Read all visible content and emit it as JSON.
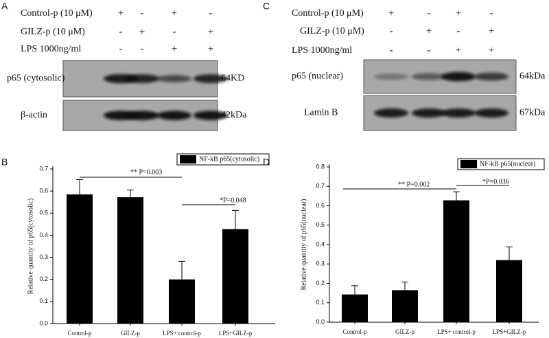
{
  "panels": [
    {
      "label": "A",
      "treatments": [
        {
          "name": "Control-p (10 μM)",
          "signs": [
            "+",
            "-",
            "+",
            "-"
          ]
        },
        {
          "name": "GILZ-p (10 μM)",
          "signs": [
            "-",
            "+",
            "-",
            "+"
          ]
        },
        {
          "name": "LPS 1000ng/ml",
          "signs": [
            "-",
            "-",
            "+",
            "+"
          ]
        }
      ],
      "blots": [
        {
          "protein": "p65 (cytosolic)",
          "size": "64KD"
        },
        {
          "protein": "β-actin",
          "size": "42kDa"
        }
      ]
    },
    {
      "label": "C",
      "treatments": [
        {
          "name": "Control-p (10 μM)",
          "signs": [
            "+",
            "-",
            "+",
            "-"
          ]
        },
        {
          "name": "GILZ-p (10 μM)",
          "signs": [
            "-",
            "+",
            "-",
            "+"
          ]
        },
        {
          "name": "LPS 1000ng/ml",
          "signs": [
            "-",
            "-",
            "+",
            "+"
          ]
        }
      ],
      "blots": [
        {
          "protein": "p65 (nuclear)",
          "size": "64kDa"
        },
        {
          "protein": "Lamin B",
          "size": "67kDa"
        }
      ]
    }
  ],
  "chart_data": [
    {
      "type": "bar",
      "panel_label": "B",
      "ylabel": "Relative quantity of p65(cytosolic)",
      "categories": [
        "Control-p",
        "GILZ-p",
        "LPS+ control-p",
        "LPS+GILZ-p"
      ],
      "series": [
        {
          "name": "NF-kB p65(cytosolic)",
          "color": "#000000",
          "values": [
            0.585,
            0.572,
            0.2,
            0.428
          ],
          "errors": [
            0.067,
            0.033,
            0.082,
            0.084
          ]
        }
      ],
      "ylim": [
        0,
        0.7
      ],
      "yticks": [
        {
          "value": 0,
          "label": "0.0"
        },
        0.1,
        0.2,
        0.3,
        0.4,
        0.5,
        0.6,
        0.7
      ],
      "annotations": [
        "** P=0.003",
        "*P=0.048"
      ]
    },
    {
      "type": "bar",
      "panel_label": "D",
      "ylabel": "Relative quantity of p65(nuclear)",
      "categories": [
        "Control-p",
        "GILZ-p",
        "LPS+ control-p",
        "LPS+GILZ-p"
      ],
      "series": [
        {
          "name": "NF-kB p65(nuclear)",
          "color": "#000000",
          "values": [
            0.143,
            0.165,
            0.628,
            0.32
          ],
          "errors": [
            0.045,
            0.042,
            0.044,
            0.068
          ]
        }
      ],
      "ylim": [
        0,
        0.8
      ],
      "yticks": [
        {
          "value": 0,
          "label": "0.0"
        },
        0.1,
        0.2,
        0.3,
        0.4,
        0.5,
        0.6,
        0.7,
        0.8
      ],
      "annotations": [
        "** P=0.002",
        "*P=0.036"
      ]
    }
  ]
}
